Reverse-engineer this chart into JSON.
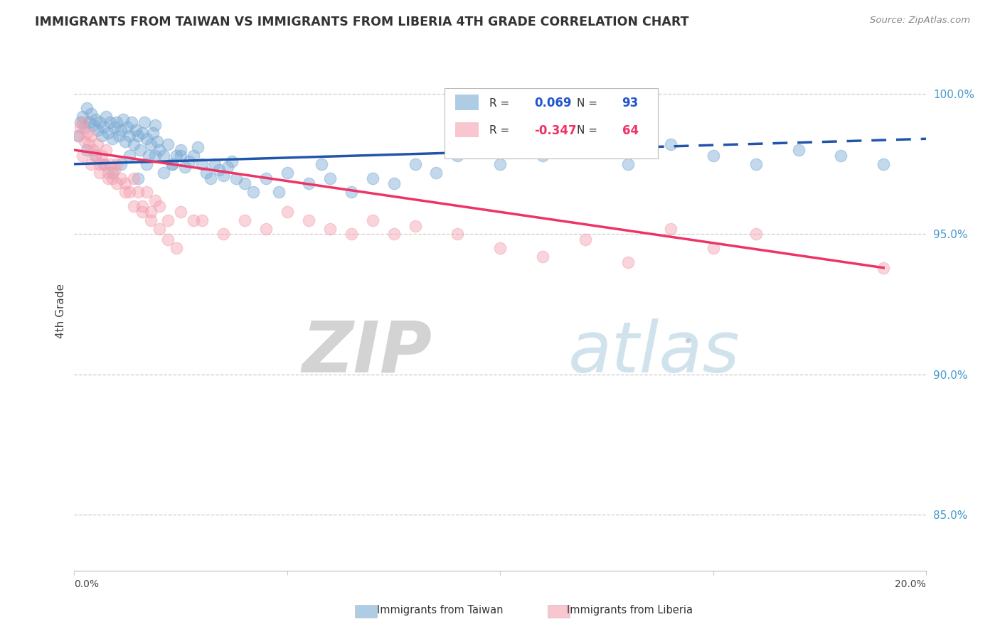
{
  "title": "IMMIGRANTS FROM TAIWAN VS IMMIGRANTS FROM LIBERIA 4TH GRADE CORRELATION CHART",
  "source": "Source: ZipAtlas.com",
  "ylabel": "4th Grade",
  "xlim": [
    0.0,
    20.0
  ],
  "ylim": [
    83.0,
    101.5
  ],
  "yticks": [
    85.0,
    90.0,
    95.0,
    100.0
  ],
  "ytick_labels": [
    "85.0%",
    "90.0%",
    "95.0%",
    "100.0%"
  ],
  "taiwan_color": "#7aaad4",
  "liberia_color": "#f4a0b0",
  "taiwan_line_color": "#2255aa",
  "liberia_line_color": "#ee3366",
  "taiwan_R": 0.069,
  "taiwan_N": 93,
  "liberia_R": -0.347,
  "liberia_N": 64,
  "taiwan_line_x0": 0.0,
  "taiwan_line_y0": 97.5,
  "taiwan_line_x1": 20.0,
  "taiwan_line_y1": 98.4,
  "taiwan_line_dash_start": 13.5,
  "liberia_line_x0": 0.0,
  "liberia_line_y0": 98.0,
  "liberia_line_x1": 19.0,
  "liberia_line_y1": 93.8,
  "taiwan_x": [
    0.1,
    0.15,
    0.2,
    0.25,
    0.3,
    0.35,
    0.4,
    0.45,
    0.5,
    0.55,
    0.6,
    0.65,
    0.7,
    0.75,
    0.8,
    0.85,
    0.9,
    0.95,
    1.0,
    1.05,
    1.1,
    1.15,
    1.2,
    1.25,
    1.3,
    1.35,
    1.4,
    1.45,
    1.5,
    1.55,
    1.6,
    1.65,
    1.7,
    1.75,
    1.8,
    1.85,
    1.9,
    1.95,
    2.0,
    2.1,
    2.2,
    2.3,
    2.4,
    2.5,
    2.6,
    2.7,
    2.8,
    2.9,
    3.0,
    3.1,
    3.2,
    3.3,
    3.4,
    3.5,
    3.6,
    3.7,
    3.8,
    4.0,
    4.2,
    4.5,
    4.8,
    5.0,
    5.5,
    5.8,
    6.0,
    6.5,
    7.0,
    7.5,
    8.0,
    8.5,
    9.0,
    10.0,
    11.0,
    12.0,
    13.0,
    14.0,
    15.0,
    16.0,
    17.0,
    18.0,
    19.0,
    0.3,
    0.5,
    0.7,
    0.9,
    1.1,
    1.3,
    1.5,
    1.7,
    1.9,
    2.1,
    2.3,
    2.5
  ],
  "taiwan_y": [
    98.5,
    99.0,
    99.2,
    98.8,
    99.5,
    99.0,
    99.3,
    98.9,
    99.1,
    98.7,
    99.0,
    98.5,
    98.8,
    99.2,
    98.6,
    99.0,
    98.4,
    98.8,
    99.0,
    98.5,
    98.7,
    99.1,
    98.3,
    98.8,
    98.5,
    99.0,
    98.2,
    98.7,
    98.5,
    98.0,
    98.6,
    99.0,
    98.4,
    97.8,
    98.2,
    98.6,
    98.9,
    98.3,
    98.0,
    97.8,
    98.2,
    97.5,
    97.8,
    98.0,
    97.4,
    97.6,
    97.8,
    98.1,
    97.5,
    97.2,
    97.0,
    97.5,
    97.3,
    97.1,
    97.4,
    97.6,
    97.0,
    96.8,
    96.5,
    97.0,
    96.5,
    97.2,
    96.8,
    97.5,
    97.0,
    96.5,
    97.0,
    96.8,
    97.5,
    97.2,
    97.8,
    97.5,
    97.8,
    98.0,
    97.5,
    98.2,
    97.8,
    97.5,
    98.0,
    97.8,
    97.5,
    98.0,
    97.8,
    97.5,
    97.2,
    97.5,
    97.8,
    97.0,
    97.5,
    97.8,
    97.2,
    97.5,
    97.8
  ],
  "liberia_x": [
    0.1,
    0.15,
    0.2,
    0.25,
    0.3,
    0.35,
    0.4,
    0.45,
    0.5,
    0.55,
    0.6,
    0.65,
    0.7,
    0.75,
    0.8,
    0.85,
    0.9,
    0.95,
    1.0,
    1.1,
    1.2,
    1.3,
    1.4,
    1.5,
    1.6,
    1.7,
    1.8,
    1.9,
    2.0,
    2.2,
    2.5,
    2.8,
    3.0,
    3.5,
    4.0,
    4.5,
    5.0,
    5.5,
    6.0,
    6.5,
    7.0,
    7.5,
    8.0,
    9.0,
    10.0,
    11.0,
    12.0,
    13.0,
    14.0,
    15.0,
    16.0,
    0.2,
    0.4,
    0.6,
    0.8,
    1.0,
    1.2,
    1.4,
    1.6,
    1.8,
    2.0,
    2.2,
    2.4,
    19.0
  ],
  "liberia_y": [
    98.5,
    98.8,
    99.0,
    98.3,
    98.6,
    98.2,
    98.5,
    98.0,
    97.8,
    98.2,
    97.5,
    97.8,
    97.5,
    98.0,
    97.2,
    97.5,
    97.0,
    97.3,
    97.5,
    97.0,
    96.8,
    96.5,
    97.0,
    96.5,
    96.0,
    96.5,
    95.8,
    96.2,
    96.0,
    95.5,
    95.8,
    95.5,
    95.5,
    95.0,
    95.5,
    95.2,
    95.8,
    95.5,
    95.2,
    95.0,
    95.5,
    95.0,
    95.3,
    95.0,
    94.5,
    94.2,
    94.8,
    94.0,
    95.2,
    94.5,
    95.0,
    97.8,
    97.5,
    97.2,
    97.0,
    96.8,
    96.5,
    96.0,
    95.8,
    95.5,
    95.2,
    94.8,
    94.5,
    93.8
  ]
}
